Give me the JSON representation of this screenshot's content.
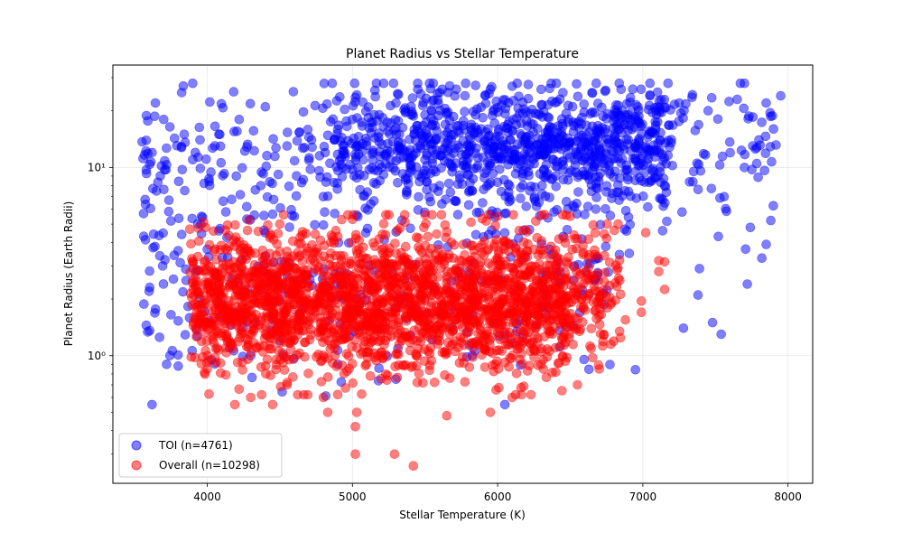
{
  "chart_data": {
    "type": "scatter",
    "title": "Planet Radius vs Stellar Temperature",
    "xlabel": "Stellar Temperature (K)",
    "ylabel": "Planet Radius (Earth Radii)",
    "xlim": [
      3350,
      8170
    ],
    "ylim": [
      0.21,
      35
    ],
    "yscale": "log",
    "grid": true,
    "legend_position": "lower-left",
    "x_ticks": [
      4000,
      5000,
      6000,
      7000,
      8000
    ],
    "x_tick_labels": [
      "4000",
      "5000",
      "6000",
      "7000",
      "8000"
    ],
    "y_ticks": [
      1,
      10
    ],
    "y_tick_labels": [
      "10⁰",
      "10¹"
    ],
    "series": [
      {
        "name": "TOI (n=4761)",
        "color": "#0000ff",
        "count": 4761,
        "points_sampled": [
          [
            3580,
            9.7
          ],
          [
            3620,
            12.0
          ],
          [
            3650,
            7.5
          ],
          [
            3700,
            18.0
          ],
          [
            3600,
            2.2
          ],
          [
            3620,
            0.55
          ],
          [
            3580,
            1.45
          ],
          [
            3640,
            3.8
          ],
          [
            3720,
            0.9
          ],
          [
            3800,
            0.88
          ],
          [
            3750,
            5.2
          ],
          [
            3900,
            11.0
          ],
          [
            3950,
            14.0
          ],
          [
            4080,
            15.0
          ],
          [
            4200,
            9.0
          ],
          [
            4220,
            18.0
          ],
          [
            4400,
            21.0
          ],
          [
            4550,
            13.0
          ],
          [
            4700,
            14.5
          ],
          [
            4850,
            17.5
          ],
          [
            5000,
            18.0
          ],
          [
            5150,
            19.0
          ],
          [
            5300,
            22.0
          ],
          [
            5450,
            26.0
          ],
          [
            5600,
            25.0
          ],
          [
            5780,
            28.0
          ],
          [
            5950,
            26.0
          ],
          [
            6100,
            27.0
          ],
          [
            6300,
            26.0
          ],
          [
            6450,
            25.0
          ],
          [
            6650,
            25.0
          ],
          [
            6850,
            26.0
          ],
          [
            7050,
            24.0
          ],
          [
            7250,
            22.0
          ],
          [
            7450,
            20.0
          ],
          [
            7650,
            23.0
          ],
          [
            7850,
            22.0
          ],
          [
            7950,
            24.0
          ],
          [
            7900,
            16.0
          ],
          [
            7800,
            14.0
          ],
          [
            7700,
            10.0
          ],
          [
            7850,
            3.9
          ],
          [
            7820,
            3.3
          ],
          [
            7740,
            4.8
          ],
          [
            7720,
            2.4
          ],
          [
            7540,
            1.3
          ],
          [
            7480,
            1.5
          ],
          [
            7390,
            2.9
          ],
          [
            7280,
            1.4
          ],
          [
            7380,
            2.1
          ],
          [
            7270,
            5.8
          ],
          [
            7520,
            4.3
          ],
          [
            7560,
            7.0
          ],
          [
            7150,
            8.0
          ],
          [
            6950,
            9.5
          ],
          [
            6050,
            0.55
          ],
          [
            5300,
            0.75
          ],
          [
            4900,
            0.9
          ],
          [
            4500,
            1.2
          ],
          [
            4300,
            1.0
          ],
          [
            5500,
            11.0
          ],
          [
            5800,
            12.0
          ],
          [
            6000,
            13.0
          ],
          [
            6200,
            11.5
          ],
          [
            5600,
            8.0
          ],
          [
            6400,
            9.0
          ],
          [
            5200,
            10.0
          ],
          [
            4800,
            7.0
          ],
          [
            4600,
            5.5
          ],
          [
            4400,
            4.5
          ]
        ]
      },
      {
        "name": "Overall (n=10298)",
        "color": "#ff0000",
        "count": 10298,
        "points_sampled": [
          [
            3880,
            4.7
          ],
          [
            3900,
            2.5
          ],
          [
            3950,
            1.5
          ],
          [
            4000,
            0.85
          ],
          [
            4150,
            3.8
          ],
          [
            4190,
            0.55
          ],
          [
            4300,
            0.6
          ],
          [
            4450,
            0.55
          ],
          [
            4550,
            0.7
          ],
          [
            4800,
            0.6
          ],
          [
            4830,
            0.5
          ],
          [
            5020,
            0.3
          ],
          [
            5020,
            0.42
          ],
          [
            5030,
            0.5
          ],
          [
            5290,
            0.3
          ],
          [
            5420,
            0.26
          ],
          [
            5650,
            0.48
          ],
          [
            5950,
            0.5
          ],
          [
            6100,
            0.6
          ],
          [
            6300,
            0.9
          ],
          [
            6550,
            0.7
          ],
          [
            6700,
            0.85
          ],
          [
            6780,
            1.15
          ],
          [
            6880,
            1.55
          ],
          [
            6990,
            1.7
          ],
          [
            6990,
            1.95
          ],
          [
            7150,
            2.25
          ],
          [
            7110,
            2.8
          ],
          [
            7110,
            3.2
          ],
          [
            7150,
            3.15
          ],
          [
            7020,
            4.5
          ],
          [
            6830,
            5.0
          ],
          [
            6500,
            5.5
          ],
          [
            6000,
            5.5
          ],
          [
            5500,
            5.6
          ],
          [
            5000,
            5.3
          ],
          [
            4500,
            5.0
          ],
          [
            4200,
            4.0
          ],
          [
            4600,
            2.2
          ],
          [
            5000,
            2.0
          ],
          [
            5400,
            1.8
          ],
          [
            5800,
            2.3
          ],
          [
            6200,
            1.6
          ],
          [
            6400,
            2.5
          ],
          [
            5600,
            1.2
          ],
          [
            5200,
            1.0
          ],
          [
            4800,
            1.4
          ],
          [
            4400,
            1.3
          ],
          [
            6000,
            3.2
          ],
          [
            5300,
            3.5
          ]
        ]
      }
    ]
  }
}
